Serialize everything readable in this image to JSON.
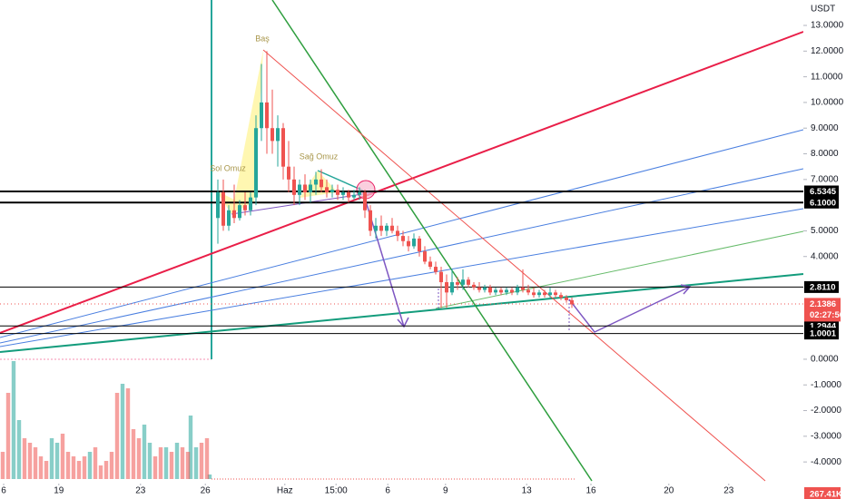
{
  "chart_data": {
    "type": "candlestick",
    "currency": "USDT",
    "xlim": [
      0,
      147.5
    ],
    "ylim": [
      -5.09,
      13.99
    ],
    "xticks": [
      {
        "value": 0.67,
        "label": "6"
      },
      {
        "value": 10.8,
        "label": "19"
      },
      {
        "value": 25.8,
        "label": "23"
      },
      {
        "value": 37.7,
        "label": "26"
      },
      {
        "value": 52.3,
        "label": "Haz"
      },
      {
        "value": 61.7,
        "label": "15:00"
      },
      {
        "value": 71.2,
        "label": "6"
      },
      {
        "value": 81.8,
        "label": "9"
      },
      {
        "value": 96.7,
        "label": "13"
      },
      {
        "value": 108.5,
        "label": "16"
      },
      {
        "value": 122.8,
        "label": "20"
      },
      {
        "value": 133.8,
        "label": "23"
      }
    ],
    "yticks": [
      {
        "value": 13,
        "label": "13.0000"
      },
      {
        "value": 12,
        "label": "12.0000"
      },
      {
        "value": 11,
        "label": "11.0000"
      },
      {
        "value": 10,
        "label": "10.0000"
      },
      {
        "value": 9,
        "label": "9.0000"
      },
      {
        "value": 8,
        "label": "8.0000"
      },
      {
        "value": 7,
        "label": "7.0000"
      },
      {
        "value": 5,
        "label": "5.0000"
      },
      {
        "value": 4,
        "label": "4.0000"
      },
      {
        "value": 0,
        "label": "0.0000"
      },
      {
        "value": -1,
        "label": "-1.0000"
      },
      {
        "value": -2,
        "label": "-2.0000"
      },
      {
        "value": -3,
        "label": "-3.0000"
      },
      {
        "value": -4,
        "label": "-4.0000"
      }
    ],
    "levels": [
      {
        "value": 6.5345,
        "label": "6.5345"
      },
      {
        "value": 6.1,
        "label": "6.1000"
      },
      {
        "value": 2.811,
        "label": "2.8110"
      },
      {
        "value": 1.2944,
        "label": "1.2944"
      },
      {
        "value": 1.0001,
        "label": "1.0001"
      }
    ],
    "last_price": 2.1386,
    "countdown": "02:27:56",
    "volume_label": "267.41K",
    "annotations": [
      "Baş",
      "Sol Omuz",
      "Sağ Omuz"
    ],
    "up_color": "#26a69a",
    "down_color": "#ef5350",
    "candles": {
      "x": [
        40,
        41,
        42,
        43,
        44,
        45,
        46,
        47,
        48,
        49,
        50,
        51,
        52,
        53,
        54,
        55,
        56,
        57,
        58,
        59,
        60,
        61,
        62,
        63,
        64,
        65,
        66,
        67,
        68,
        69,
        70,
        71,
        72,
        73,
        74,
        75,
        76,
        77,
        78,
        79,
        80,
        81,
        82,
        83,
        84,
        85,
        86,
        87,
        88,
        89,
        90,
        91,
        92,
        93,
        94,
        95,
        96,
        97,
        98,
        99,
        100,
        101,
        102,
        103,
        104,
        105
      ],
      "open": [
        5.5,
        6.5,
        5.2,
        5.8,
        5.5,
        6.0,
        5.8,
        6.3,
        9.0,
        10.0,
        9.0,
        8.5,
        9.0,
        7.5,
        7.0,
        6.4,
        6.8,
        6.5,
        6.8,
        7.0,
        6.7,
        6.5,
        6.6,
        6.4,
        6.5,
        6.3,
        6.4,
        6.5,
        5.8,
        5.0,
        5.2,
        5.0,
        5.2,
        5.0,
        4.8,
        4.6,
        4.4,
        4.7,
        4.2,
        3.8,
        3.6,
        3.4,
        3.0,
        2.6,
        3.0,
        2.9,
        3.1,
        2.9,
        2.8,
        2.7,
        2.8,
        2.6,
        2.7,
        2.6,
        2.7,
        2.6,
        2.8,
        2.7,
        2.6,
        2.5,
        2.6,
        2.5,
        2.6,
        2.5,
        2.4,
        2.3
      ],
      "high": [
        7.0,
        7.0,
        6.0,
        6.8,
        6.2,
        6.5,
        6.5,
        9.5,
        11.5,
        12.0,
        10.5,
        9.5,
        9.2,
        8.5,
        7.5,
        7.0,
        7.2,
        7.0,
        7.3,
        7.4,
        7.0,
        6.8,
        6.8,
        6.7,
        6.6,
        6.6,
        6.7,
        6.6,
        6.0,
        5.5,
        5.6,
        5.3,
        5.5,
        5.2,
        5.0,
        4.8,
        4.9,
        4.8,
        4.4,
        4.0,
        3.8,
        3.6,
        3.3,
        3.5,
        3.2,
        3.5,
        3.2,
        3.0,
        3.0,
        2.9,
        2.9,
        2.8,
        2.8,
        2.8,
        2.8,
        2.9,
        3.5,
        2.9,
        2.8,
        2.7,
        2.7,
        2.8,
        2.7,
        2.6,
        2.5,
        2.4
      ],
      "low": [
        4.5,
        5.0,
        5.0,
        5.3,
        5.4,
        5.6,
        5.6,
        6.0,
        8.5,
        8.0,
        8.0,
        7.5,
        7.0,
        6.5,
        6.0,
        6.0,
        6.2,
        6.1,
        6.4,
        6.5,
        6.3,
        6.3,
        6.2,
        6.2,
        6.1,
        6.2,
        6.2,
        5.5,
        4.8,
        4.7,
        4.8,
        4.8,
        4.9,
        4.6,
        4.4,
        4.2,
        4.3,
        4.0,
        3.7,
        3.5,
        3.3,
        2.0,
        2.0,
        2.5,
        2.7,
        2.7,
        2.8,
        2.7,
        2.6,
        2.6,
        2.5,
        2.5,
        2.5,
        2.5,
        2.5,
        2.5,
        2.6,
        2.5,
        2.4,
        2.4,
        2.4,
        2.4,
        2.4,
        2.3,
        2.2,
        2.0
      ],
      "close": [
        6.5,
        5.2,
        5.8,
        5.5,
        6.0,
        5.8,
        6.3,
        9.0,
        10.0,
        9.0,
        8.5,
        9.0,
        7.5,
        7.0,
        6.4,
        6.8,
        6.5,
        6.8,
        7.0,
        6.7,
        6.5,
        6.6,
        6.4,
        6.5,
        6.3,
        6.4,
        6.5,
        5.8,
        5.0,
        5.2,
        5.0,
        5.2,
        5.0,
        4.8,
        4.6,
        4.4,
        4.7,
        4.2,
        3.8,
        3.6,
        3.4,
        3.0,
        2.6,
        3.0,
        2.9,
        3.1,
        2.9,
        2.8,
        2.7,
        2.8,
        2.6,
        2.7,
        2.6,
        2.7,
        2.6,
        2.8,
        2.7,
        2.6,
        2.5,
        2.6,
        2.5,
        2.6,
        2.5,
        2.4,
        2.3,
        2.1386
      ]
    },
    "volume": {
      "vlim": [
        0,
        130
      ],
      "up": {
        "x": [
          2.5,
          3.5,
          9.5,
          10.5,
          16.5,
          22.5,
          26.5,
          27.5,
          30.5,
          32.5,
          35,
          36,
          38.5
        ],
        "values": [
          130,
          65,
          45,
          40,
          30,
          105,
          60,
          40,
          35,
          40,
          70,
          35,
          5
        ]
      },
      "down": {
        "x": [
          0.5,
          1.5,
          4.5,
          5.5,
          6.5,
          7.5,
          8.5,
          11.5,
          12.5,
          13.5,
          14.5,
          15.5,
          17.5,
          18.5,
          19.5,
          20.5,
          21.5,
          23.5,
          24.5,
          25.5,
          28.5,
          29.5,
          31.5,
          33.5,
          34.5,
          37,
          38
        ],
        "values": [
          30,
          95,
          45,
          40,
          35,
          25,
          20,
          50,
          30,
          25,
          20,
          25,
          35,
          15,
          20,
          30,
          95,
          100,
          55,
          45,
          25,
          35,
          30,
          35,
          30,
          40,
          45
        ]
      }
    }
  }
}
